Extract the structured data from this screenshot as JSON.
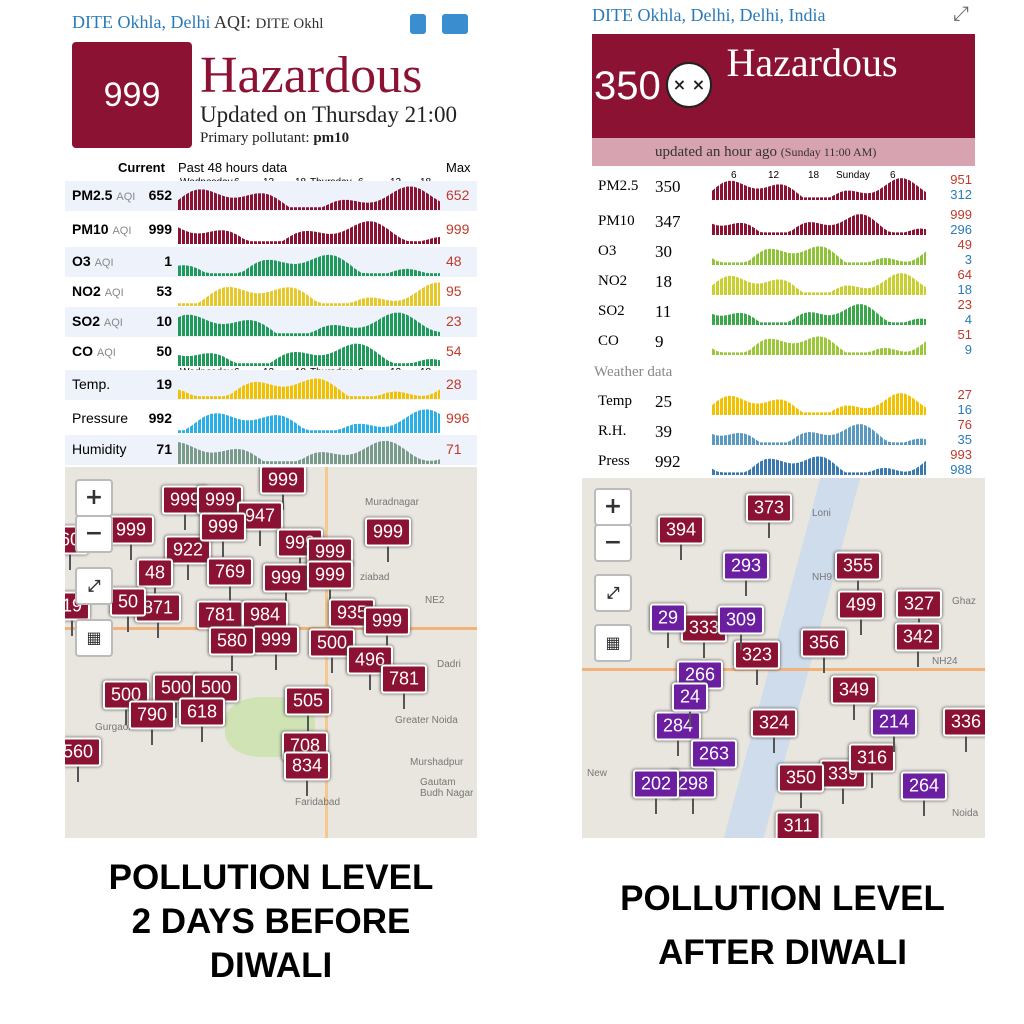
{
  "left": {
    "header": {
      "station": "DITE Okhla, Delhi",
      "aqi_label": "AQI:",
      "station_short": "DITE Okhl"
    },
    "aqi": "999",
    "level": "Hazardous",
    "updated": "Updated on Thursday 21:00",
    "pollutant_label": "Primary pollutant:",
    "pollutant": "pm10",
    "columns": {
      "current": "Current",
      "history": "Past 48 hours data",
      "max": "Max"
    },
    "timeline": [
      "Wednesday",
      "6",
      "12",
      "18",
      "Thursday",
      "6",
      "12",
      "18"
    ],
    "timeline2": [
      "Wednesday",
      "6",
      "12",
      "18",
      "Thursday",
      "6",
      "12",
      "18"
    ],
    "rows": [
      {
        "name": "PM2.5",
        "unit": "AQI",
        "current": "652",
        "max": "652"
      },
      {
        "name": "PM10",
        "unit": "AQI",
        "current": "999",
        "max": "999"
      },
      {
        "name": "O3",
        "unit": "AQI",
        "current": "1",
        "max": "48"
      },
      {
        "name": "NO2",
        "unit": "AQI",
        "current": "53",
        "max": "95"
      },
      {
        "name": "SO2",
        "unit": "AQI",
        "current": "10",
        "max": "23"
      },
      {
        "name": "CO",
        "unit": "AQI",
        "current": "50",
        "max": "54"
      },
      {
        "name": "Temp.",
        "current": "19",
        "max": "28"
      },
      {
        "name": "Pressure",
        "current": "992",
        "max": "996"
      },
      {
        "name": "Humidity",
        "current": "71",
        "max": "71"
      }
    ],
    "markers": {
      "maroon": [
        "999",
        "999",
        "999",
        "999",
        "947",
        "999",
        "922",
        "999",
        "999",
        "999",
        "769",
        "48",
        "999",
        "999",
        "871",
        "50",
        "781",
        "984",
        "935",
        "999",
        "999",
        "580",
        "500",
        "496",
        "781",
        "500",
        "500",
        "500",
        "790",
        "618",
        "505",
        "708",
        "834",
        "560",
        "60",
        "19"
      ],
      "purple": []
    },
    "places": [
      "Muradnagar",
      "ziabad",
      "NE2",
      "Dadri",
      "Greater Noida",
      "Murshadpur",
      "Gautam Budh Nagar",
      "Faridabad",
      "Gurgaon"
    ],
    "caption": [
      "POLLUTION LEVEL",
      "2 DAYS BEFORE",
      "DIWALI"
    ]
  },
  "right": {
    "header": {
      "station": "DITE Okhla, Delhi, Delhi, India"
    },
    "aqi": "350",
    "level": "Hazardous",
    "updated": "updated an hour ago",
    "updated_time": "(Sunday 11:00 AM)",
    "timeline": [
      "6",
      "12",
      "18",
      "Sunday",
      "6"
    ],
    "weather_label": "Weather data",
    "rows": [
      {
        "name": "PM2.5",
        "current": "350",
        "max": "951",
        "min": "312"
      },
      {
        "name": "PM10",
        "current": "347",
        "max": "999",
        "min": "296"
      },
      {
        "name": "O3",
        "current": "30",
        "max": "49",
        "min": "3"
      },
      {
        "name": "NO2",
        "current": "18",
        "max": "64",
        "min": "18"
      },
      {
        "name": "SO2",
        "current": "11",
        "max": "23",
        "min": "4"
      },
      {
        "name": "CO",
        "current": "9",
        "max": "51",
        "min": "9"
      },
      {
        "name": "Temp",
        "current": "25",
        "max": "27",
        "min": "16"
      },
      {
        "name": "R.H.",
        "current": "39",
        "max": "76",
        "min": "35"
      },
      {
        "name": "Press",
        "current": "992",
        "max": "993",
        "min": "988"
      }
    ],
    "markers": {
      "maroon": [
        "373",
        "394",
        "355",
        "499",
        "327",
        "342",
        "333",
        "356",
        "323",
        "349",
        "324",
        "339",
        "336",
        "316",
        "350",
        "311"
      ],
      "purple": [
        "293",
        "309",
        "266",
        "214",
        "284",
        "263",
        "298",
        "202",
        "264",
        "29",
        "24"
      ]
    },
    "places": [
      "Loni",
      "Ghaz",
      "NH9",
      "NH24",
      "Noida",
      "New"
    ],
    "caption": [
      "POLLUTION LEVEL",
      "AFTER DIWALI"
    ]
  }
}
